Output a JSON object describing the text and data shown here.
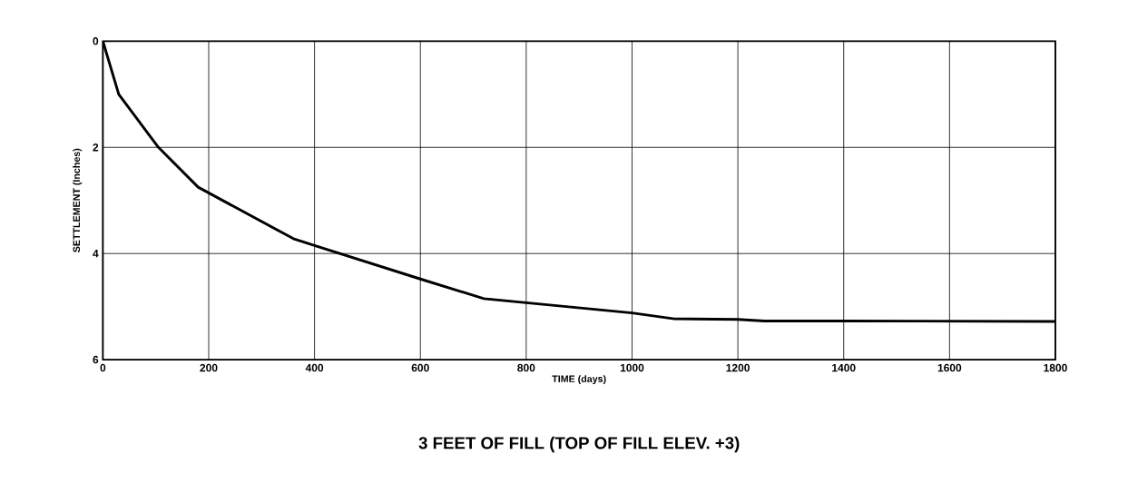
{
  "chart_data": {
    "type": "line",
    "title": "3 FEET OF FILL (TOP OF FILL ELEV. +3)",
    "xlabel": "TIME  (days)",
    "ylabel": "SETTLEMENT  (Inches)",
    "x": [
      0,
      30,
      105,
      180,
      360,
      400,
      600,
      720,
      1000,
      1080,
      1200,
      1250,
      1400,
      1800
    ],
    "series": [
      {
        "color": "#000000",
        "values": [
          0,
          1.0,
          2.0,
          2.75,
          3.72,
          3.85,
          4.48,
          4.85,
          5.12,
          5.23,
          5.24,
          5.27,
          5.27,
          5.28
        ]
      }
    ],
    "xlim": [
      0,
      1800
    ],
    "xticks": [
      0,
      200,
      400,
      600,
      800,
      1000,
      1200,
      1400,
      1600,
      1800
    ],
    "ylim": [
      6,
      0
    ],
    "yticks": [
      0,
      2,
      4,
      6
    ],
    "grid": true,
    "marker": "none",
    "line_style": "solid"
  }
}
